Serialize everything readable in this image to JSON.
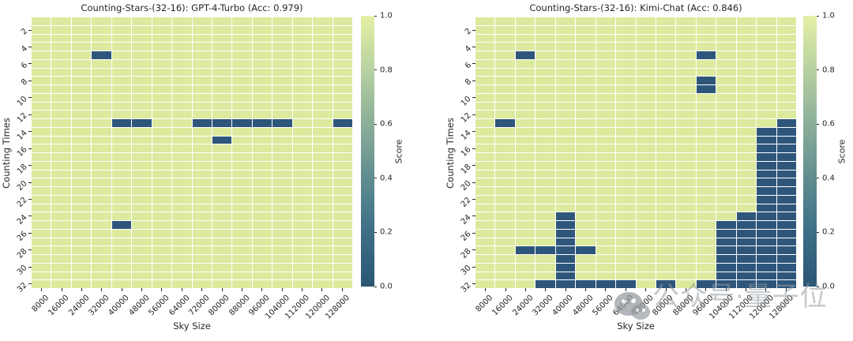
{
  "watermark": {
    "text": "公众号·量子位"
  },
  "colors": {
    "cell_high": "#dcea9e",
    "cell_low": "#2e567b",
    "grid_line": "#ffffff",
    "colorbar_gradient": [
      "#e5f0a5",
      "#b7d1a1",
      "#8bae98",
      "#5f8d90",
      "#3d6e87",
      "#2b5674"
    ],
    "title_text": "#262626",
    "tick_text": "#262626"
  },
  "chart_data": [
    {
      "type": "heatmap",
      "title": "Counting-Stars-(32-16): GPT-4-Turbo (Acc: 0.979)",
      "xlabel": "Sky Size",
      "ylabel": "Counting Times",
      "colorbar_label": "Score",
      "rows": 32,
      "cols": 16,
      "x_categories": [
        8000,
        16000,
        24000,
        32000,
        40000,
        48000,
        56000,
        64000,
        72000,
        80000,
        88000,
        96000,
        104000,
        112000,
        120000,
        128000
      ],
      "y_tick_labels": [
        2,
        4,
        6,
        8,
        10,
        12,
        14,
        16,
        18,
        20,
        22,
        24,
        26,
        28,
        30,
        32
      ],
      "colorbar_ticks": [
        "1.0",
        "0.8",
        "0.6",
        "0.4",
        "0.2",
        "0.0"
      ],
      "score_range": [
        0.0,
        1.0
      ],
      "default_score": 1.0,
      "zero_score_cells_counting_times_by_sky_size": [
        [
          5,
          32000
        ],
        [
          13,
          40000
        ],
        [
          13,
          48000
        ],
        [
          13,
          72000
        ],
        [
          13,
          80000
        ],
        [
          13,
          88000
        ],
        [
          13,
          96000
        ],
        [
          13,
          104000
        ],
        [
          13,
          128000
        ],
        [
          15,
          80000
        ],
        [
          25,
          40000
        ]
      ]
    },
    {
      "type": "heatmap",
      "title": "Counting-Stars-(32-16): Kimi-Chat (Acc: 0.846)",
      "xlabel": "Sky Size",
      "ylabel": "Counting Times",
      "colorbar_label": "Score",
      "rows": 32,
      "cols": 16,
      "x_categories": [
        8000,
        16000,
        24000,
        32000,
        40000,
        48000,
        56000,
        64000,
        72000,
        80000,
        88000,
        96000,
        104000,
        112000,
        120000,
        128000
      ],
      "y_tick_labels": [
        2,
        4,
        6,
        8,
        10,
        12,
        14,
        16,
        18,
        20,
        22,
        24,
        26,
        28,
        30,
        32
      ],
      "colorbar_ticks": [
        "1.0",
        "0.8",
        "0.6",
        "0.4",
        "0.2",
        "0.0"
      ],
      "score_range": [
        0.0,
        1.0
      ],
      "default_score": 1.0,
      "zero_score_cells_counting_times_by_sky_size": [
        [
          5,
          24000
        ],
        [
          5,
          96000
        ],
        [
          8,
          96000
        ],
        [
          9,
          96000
        ],
        [
          13,
          16000
        ],
        [
          13,
          128000
        ],
        [
          14,
          120000
        ],
        [
          14,
          128000
        ],
        [
          15,
          120000
        ],
        [
          15,
          128000
        ],
        [
          16,
          120000
        ],
        [
          16,
          128000
        ],
        [
          17,
          120000
        ],
        [
          17,
          128000
        ],
        [
          18,
          120000
        ],
        [
          18,
          128000
        ],
        [
          19,
          120000
        ],
        [
          19,
          128000
        ],
        [
          20,
          120000
        ],
        [
          20,
          128000
        ],
        [
          21,
          120000
        ],
        [
          21,
          128000
        ],
        [
          22,
          120000
        ],
        [
          22,
          128000
        ],
        [
          23,
          120000
        ],
        [
          23,
          128000
        ],
        [
          24,
          40000
        ],
        [
          24,
          112000
        ],
        [
          24,
          120000
        ],
        [
          24,
          128000
        ],
        [
          25,
          40000
        ],
        [
          25,
          104000
        ],
        [
          25,
          112000
        ],
        [
          25,
          120000
        ],
        [
          25,
          128000
        ],
        [
          26,
          40000
        ],
        [
          26,
          104000
        ],
        [
          26,
          112000
        ],
        [
          26,
          120000
        ],
        [
          26,
          128000
        ],
        [
          27,
          40000
        ],
        [
          27,
          104000
        ],
        [
          27,
          112000
        ],
        [
          27,
          120000
        ],
        [
          27,
          128000
        ],
        [
          28,
          24000
        ],
        [
          28,
          32000
        ],
        [
          28,
          40000
        ],
        [
          28,
          48000
        ],
        [
          28,
          104000
        ],
        [
          28,
          112000
        ],
        [
          28,
          120000
        ],
        [
          28,
          128000
        ],
        [
          29,
          40000
        ],
        [
          29,
          104000
        ],
        [
          29,
          112000
        ],
        [
          29,
          120000
        ],
        [
          29,
          128000
        ],
        [
          30,
          40000
        ],
        [
          30,
          104000
        ],
        [
          30,
          112000
        ],
        [
          30,
          120000
        ],
        [
          30,
          128000
        ],
        [
          31,
          40000
        ],
        [
          31,
          104000
        ],
        [
          31,
          112000
        ],
        [
          31,
          120000
        ],
        [
          31,
          128000
        ],
        [
          32,
          32000
        ],
        [
          32,
          40000
        ],
        [
          32,
          48000
        ],
        [
          32,
          56000
        ],
        [
          32,
          64000
        ],
        [
          32,
          80000
        ],
        [
          32,
          96000
        ],
        [
          32,
          104000
        ],
        [
          32,
          112000
        ],
        [
          32,
          120000
        ],
        [
          32,
          128000
        ]
      ]
    }
  ]
}
